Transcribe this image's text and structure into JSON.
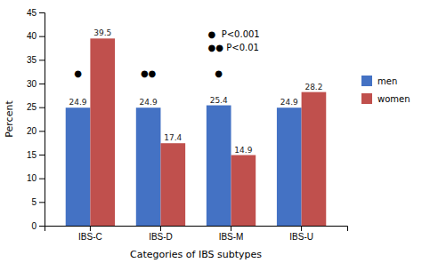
{
  "chart_data": {
    "type": "bar",
    "xlabel": "Categories of IBS subtypes",
    "ylabel": "Percent",
    "categories": [
      "IBS-C",
      "IBS-D",
      "IBS-M",
      "IBS-U"
    ],
    "series": [
      {
        "name": "men",
        "color": "#4472C4",
        "values": [
          24.9,
          24.9,
          25.4,
          24.9
        ]
      },
      {
        "name": "women",
        "color": "#C0504D",
        "values": [
          39.5,
          17.4,
          14.9,
          28.2
        ]
      }
    ],
    "ylim": [
      0,
      45
    ],
    "yticks": [
      0,
      5,
      10,
      15,
      20,
      25,
      30,
      35,
      40,
      45
    ],
    "data_labels": true,
    "grid": false,
    "legend": "right",
    "annotations": [
      {
        "text": "●",
        "x": "IBS-C",
        "y": 31.5,
        "series": "men"
      },
      {
        "text": "●●",
        "x": "IBS-D",
        "y": 31.5,
        "series": "men"
      },
      {
        "text": "●",
        "x": "IBS-M",
        "y": 31.5,
        "series": "men"
      },
      {
        "text": "●  P<0.001"
      },
      {
        "text": "●● P<0.01"
      }
    ]
  }
}
